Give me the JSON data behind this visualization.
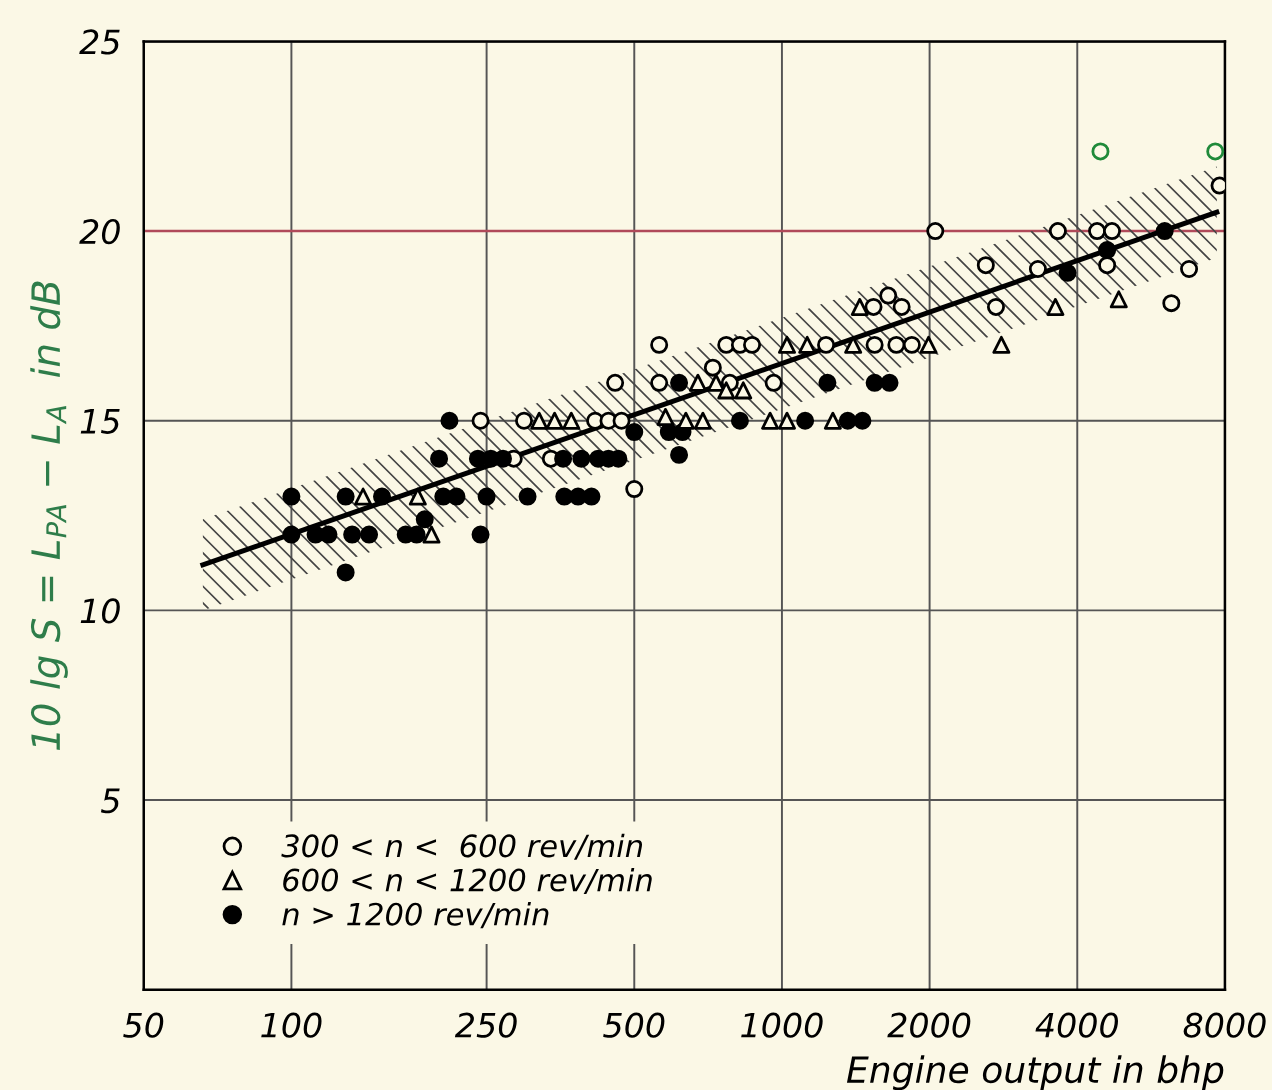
{
  "chart_data": {
    "type": "scatter",
    "xlabel": "Engine output in bhp",
    "ylabel": "10 lg S = L$_{PA}$ − L$_{A}$  in dB",
    "log": "x",
    "xlim": [
      50,
      8000
    ],
    "xticks": [
      50,
      100,
      250,
      500,
      1000,
      2000,
      4000,
      8000
    ],
    "ylim": [
      0,
      25
    ],
    "yticks": [
      5,
      10,
      15,
      20,
      25
    ],
    "grid": true,
    "legend": "bottom left",
    "ref_lines": [
      {
        "axis": "y",
        "value": 20,
        "color": "#b04a5a"
      }
    ],
    "series": [
      {
        "type": "line",
        "marker": "none",
        "color": "#000000",
        "x": [
          66,
          7700
        ],
        "values": [
          11.2,
          20.5
        ],
        "lower": [
          10.0,
          19.3
        ],
        "upper": [
          12.4,
          21.7
        ]
      },
      {
        "name": "300 < n <  600 rev/min",
        "marker": "circle",
        "color": "#fbf8e6",
        "x": [
          243,
          298,
          284,
          338,
          416,
          443,
          471,
          457,
          500,
          562,
          562,
          723,
          783,
          770,
          821,
          869,
          962,
          1230,
          1545,
          1711,
          1840,
          1537,
          1647,
          1754,
          2054,
          2604,
          2731,
          3325,
          3652,
          4390,
          4708,
          4602,
          4460,
          6220,
          6760,
          7645,
          7800
        ],
        "values": [
          15,
          15,
          14,
          14,
          15,
          15,
          15,
          16,
          13.2,
          17,
          16,
          16.4,
          16,
          17,
          17,
          17,
          16,
          17,
          17,
          17,
          17,
          18,
          18.3,
          18,
          20,
          19.1,
          18,
          19,
          20,
          20,
          20,
          19.1,
          22.1,
          18.1,
          19,
          22.1,
          21.2
        ],
        "colors": [
          "#000000",
          "#000000",
          "#000000",
          "#000000",
          "#000000",
          "#000000",
          "#000000",
          "#000000",
          "#000000",
          "#000000",
          "#000000",
          "#000000",
          "#000000",
          "#000000",
          "#000000",
          "#000000",
          "#000000",
          "#000000",
          "#000000",
          "#000000",
          "#000000",
          "#000000",
          "#000000",
          "#000000",
          "#000000",
          "#000000",
          "#000000",
          "#000000",
          "#000000",
          "#000000",
          "#000000",
          "#000000",
          "#1f8a3a",
          "#000000",
          "#000000",
          "#1f8a3a",
          "#000000"
        ]
      },
      {
        "name": "600 < n < 1200 rev/min",
        "marker": "triangle",
        "color": "#fbf8e6",
        "x": [
          140,
          181,
          193,
          320,
          344,
          372,
          579,
          637,
          690,
          674,
          734,
          770,
          834,
          946,
          1024,
          1024,
          1126,
          1397,
          1990,
          1270,
          1441,
          2801,
          3610,
          4860
        ],
        "values": [
          13,
          13,
          12,
          15,
          15,
          15,
          15.1,
          15,
          15,
          16,
          16,
          15.8,
          15.8,
          15,
          15,
          17,
          17,
          17,
          17,
          15,
          18,
          17,
          18,
          18.2
        ]
      },
      {
        "name": "n > 1200 rev/min",
        "marker": "circle",
        "color": "#000000",
        "x": [
          100,
          100,
          112,
          119,
          129,
          129,
          133,
          144,
          153,
          171,
          180,
          187,
          200,
          204,
          217,
          210,
          243,
          250,
          240,
          255,
          270,
          303,
          358,
          390,
          422,
          443,
          464,
          360,
          384,
          409,
          500,
          588,
          617,
          617,
          627,
          821,
          1115,
          1238,
          1362,
          1459,
          1545,
          1657,
          3822,
          4602,
          6030
        ],
        "values": [
          13,
          12,
          12,
          12,
          11,
          13,
          12,
          12,
          13,
          12,
          12,
          12.4,
          14,
          13,
          13,
          15,
          12,
          13,
          14,
          14,
          14,
          13,
          14,
          14,
          14,
          14,
          14,
          13,
          13,
          13,
          14.7,
          14.7,
          16,
          14.1,
          14.7,
          15,
          15,
          16,
          15,
          15,
          16,
          16,
          18.9,
          19.5,
          20
        ]
      }
    ]
  }
}
